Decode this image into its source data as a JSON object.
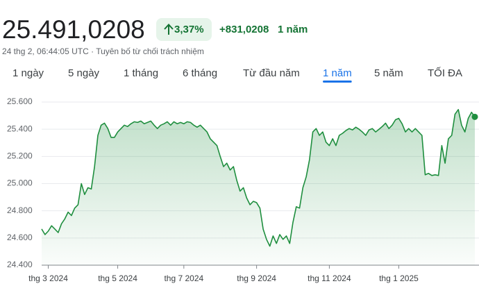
{
  "header": {
    "price": "25.491,0208",
    "change_percent": "3,37%",
    "change_absolute": "+831,0208",
    "change_period": "1 năm",
    "timestamp": "24 thg 2, 06:44:05 UTC · Tuyên bố từ chối trách nhiệm"
  },
  "tabs": {
    "items": [
      "1 ngày",
      "5 ngày",
      "1 tháng",
      "6 tháng",
      "Từ đầu năm",
      "1 năm",
      "5 năm",
      "TỐI ĐA"
    ],
    "selected": 5
  },
  "chart_data": {
    "type": "area",
    "color": "#1e8e3e",
    "grid": true,
    "categories": [
      null,
      null,
      "thg 3 2024",
      null,
      null,
      null,
      null,
      null,
      null,
      null,
      null,
      null,
      null,
      null,
      null,
      null,
      null,
      null,
      null,
      null,
      null,
      null,
      null,
      "thg 5 2024",
      null,
      null,
      null,
      null,
      null,
      null,
      null,
      null,
      null,
      null,
      null,
      null,
      null,
      null,
      null,
      null,
      null,
      null,
      null,
      "thg 7 2024",
      null,
      null,
      null,
      null,
      null,
      null,
      null,
      null,
      null,
      null,
      null,
      null,
      null,
      null,
      null,
      null,
      null,
      null,
      null,
      null,
      null,
      "thg 9 2024",
      null,
      null,
      null,
      null,
      null,
      null,
      null,
      null,
      null,
      null,
      null,
      null,
      null,
      null,
      null,
      null,
      null,
      null,
      null,
      null,
      null,
      "thg 11 2024",
      null,
      null,
      null,
      null,
      null,
      null,
      null,
      null,
      null,
      null,
      null,
      null,
      null,
      null,
      null,
      null,
      null,
      null,
      null,
      null,
      "thg 1 2025",
      null,
      null,
      null,
      null,
      null,
      null,
      null,
      null,
      null,
      null,
      null,
      null,
      null,
      null,
      null,
      null,
      null,
      null,
      null,
      null,
      null,
      null,
      null
    ],
    "values": [
      24666,
      24625,
      24650,
      24690,
      24665,
      24640,
      24705,
      24740,
      24790,
      24765,
      24820,
      24845,
      25000,
      24920,
      24970,
      24960,
      25125,
      25355,
      25430,
      25445,
      25405,
      25340,
      25340,
      25380,
      25405,
      25430,
      25420,
      25440,
      25455,
      25450,
      25460,
      25440,
      25450,
      25460,
      25430,
      25405,
      25430,
      25440,
      25455,
      25430,
      25455,
      25440,
      25450,
      25440,
      25455,
      25450,
      25430,
      25415,
      25430,
      25405,
      25380,
      25330,
      25305,
      25280,
      25200,
      25125,
      25150,
      25100,
      25125,
      25025,
      24945,
      24970,
      24895,
      24845,
      24870,
      24860,
      24820,
      24665,
      24590,
      24540,
      24615,
      24560,
      24625,
      24590,
      24615,
      24560,
      24715,
      24830,
      24820,
      24970,
      25050,
      25175,
      25380,
      25405,
      25355,
      25380,
      25305,
      25280,
      25330,
      25280,
      25355,
      25370,
      25390,
      25405,
      25395,
      25415,
      25400,
      25380,
      25355,
      25395,
      25405,
      25380,
      25400,
      25420,
      25445,
      25405,
      25430,
      25470,
      25480,
      25440,
      25380,
      25405,
      25380,
      25405,
      25380,
      25355,
      25065,
      25075,
      25060,
      25065,
      25060,
      25280,
      25150,
      25330,
      25355,
      25510,
      25545,
      25430,
      25380,
      25480,
      25525,
      25491
    ],
    "ylim": [
      24400,
      25600
    ],
    "yticks": [
      {
        "value": 24400,
        "label": "24.400"
      },
      {
        "value": 24600,
        "label": "24.600"
      },
      {
        "value": 24800,
        "label": "24.800"
      },
      {
        "value": 25000,
        "label": "25.000"
      },
      {
        "value": 25200,
        "label": "25.200"
      },
      {
        "value": 25400,
        "label": "25.400"
      },
      {
        "value": 25600,
        "label": "25.600"
      }
    ]
  }
}
